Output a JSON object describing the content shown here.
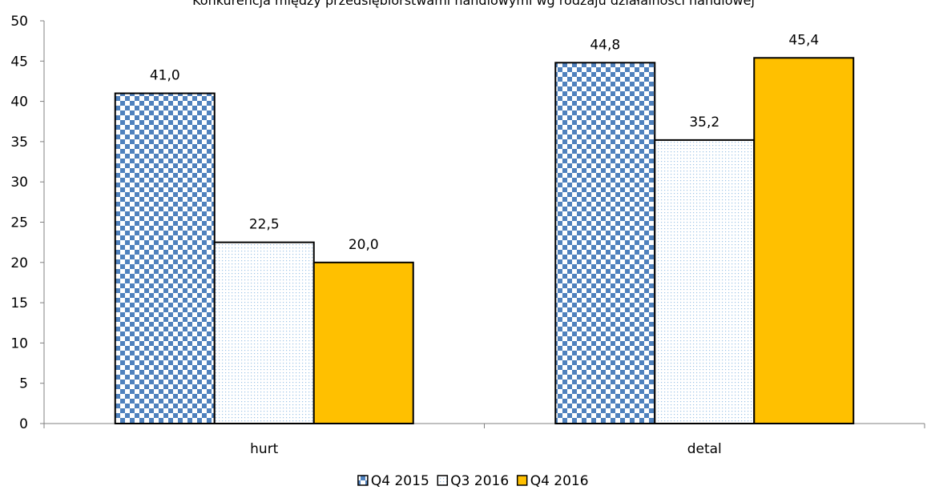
{
  "chart_data": {
    "type": "bar",
    "title": "Konkurencja między przedsiębiorstwami handlowymi wg rodzaju działalności handlowej",
    "xlabel": "",
    "ylabel": "",
    "ylim": [
      0,
      50
    ],
    "ytick_step": 5,
    "grid": false,
    "legend_position": "bottom",
    "categories": [
      "hurt",
      "detal"
    ],
    "series": [
      {
        "name": "Q4 2015",
        "values": [
          41.0,
          44.8
        ],
        "color": "#4F81BD",
        "pattern": "checker"
      },
      {
        "name": "Q3 2016",
        "values": [
          22.5,
          35.2
        ],
        "color": "#9DC3E6",
        "pattern": "dots"
      },
      {
        "name": "Q4 2016",
        "values": [
          20.0,
          45.4
        ],
        "color": "#FFC000",
        "pattern": "solid"
      }
    ],
    "data_labels": [
      [
        "41,0",
        "44,8"
      ],
      [
        "22,5",
        "35,2"
      ],
      [
        "20,0",
        "45,4"
      ]
    ]
  }
}
